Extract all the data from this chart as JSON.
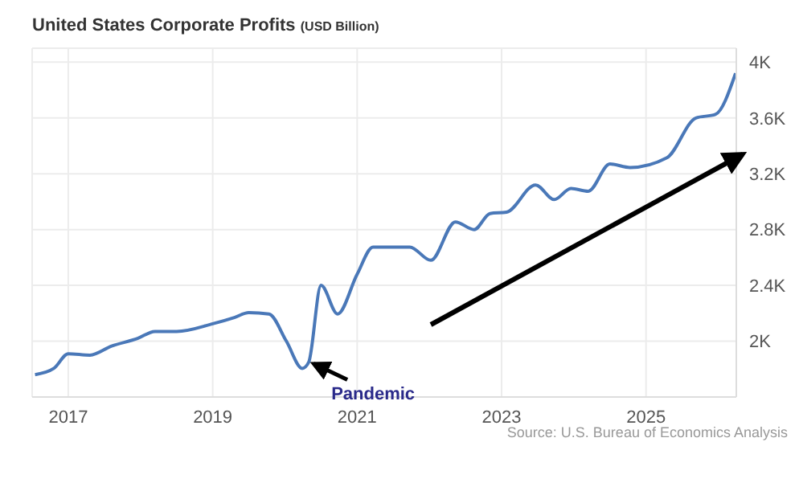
{
  "chart_data": {
    "type": "line",
    "title": "United States Corporate Profits",
    "subtitle": "(USD Billion)",
    "x": [
      2016.54,
      2016.8,
      2017,
      2017.3,
      2017.6,
      2017.96,
      2018.2,
      2018.5,
      2019,
      2019.3,
      2019.5,
      2019.78,
      2020.02,
      2020.24,
      2020.33,
      2020.5,
      2020.73,
      2021,
      2021.22,
      2021.73,
      2022.02,
      2022.36,
      2022.62,
      2022.84,
      2023.07,
      2023.47,
      2023.73,
      2023.96,
      2024.2,
      2024.5,
      2024.78,
      2025.29,
      2025.69,
      2025.96,
      2026.24
    ],
    "series": [
      {
        "color": "#4a78b8",
        "values": [
          1760,
          1805,
          1910,
          1900,
          1965,
          2020,
          2070,
          2070,
          2125,
          2170,
          2205,
          2195,
          2000,
          1805,
          1850,
          2400,
          2195,
          2480,
          2675,
          2675,
          2580,
          2855,
          2800,
          2915,
          2925,
          3120,
          3015,
          3095,
          3075,
          3270,
          3245,
          3315,
          3600,
          3625,
          3920
        ]
      }
    ],
    "xlim": [
      2016.5,
      2026.25
    ],
    "xticks": [
      2017,
      2019,
      2021,
      2023,
      2025
    ],
    "ylim": [
      1600,
      4100
    ],
    "yticks": [
      {
        "value": 2000,
        "label": "2K"
      },
      {
        "value": 2400,
        "label": "2.4K"
      },
      {
        "value": 2800,
        "label": "2.8K"
      },
      {
        "value": 3200,
        "label": "3.2K"
      },
      {
        "value": 3600,
        "label": "3.6K"
      },
      {
        "value": 4000,
        "label": "4K"
      }
    ],
    "grid": true,
    "legend": false,
    "marker": "none",
    "line_style": "solid",
    "annotations": [
      {
        "text": "Pandemic",
        "x": 2020.33,
        "y": 1850
      },
      "Source: U.S. Bureau of Economics Analysis"
    ]
  }
}
